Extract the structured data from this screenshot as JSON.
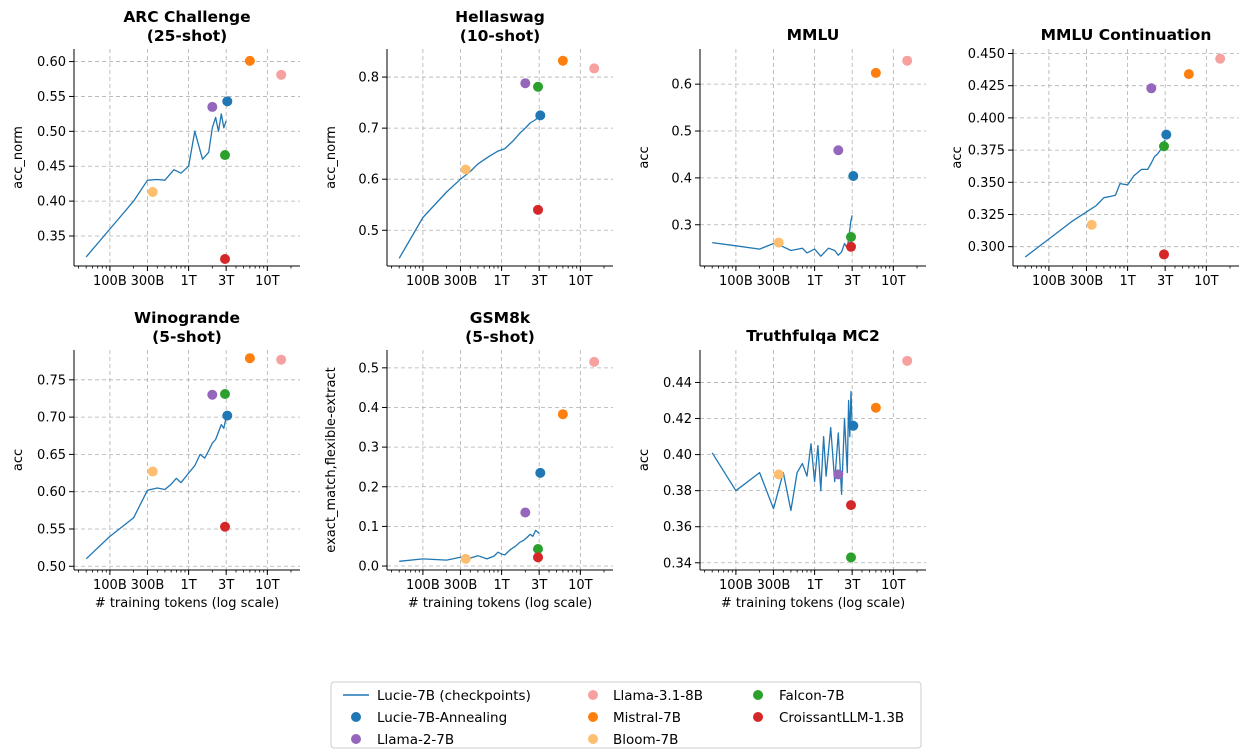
{
  "figure": {
    "xlabel": "# training tokens (log scale)",
    "x_ticks": [
      {
        "v": 100,
        "label": "100B"
      },
      {
        "v": 300,
        "label": "300B"
      },
      {
        "v": 1000,
        "label": "1T"
      },
      {
        "v": 3000,
        "label": "3T"
      },
      {
        "v": 10000,
        "label": "10T"
      }
    ],
    "x_unit": "billions of tokens",
    "xscale": "log",
    "xlim": [
      35,
      26000
    ],
    "grid": true,
    "legend_position": "bottom-center"
  },
  "legend": {
    "items": [
      {
        "label": "Lucie-7B (checkpoints)",
        "kind": "line",
        "color": "#1f77b4"
      },
      {
        "label": "Lucie-7B-Annealing",
        "kind": "dot",
        "color": "#1f77b4"
      },
      {
        "label": "Llama-2-7B",
        "kind": "dot",
        "color": "#9467bd"
      },
      {
        "label": "Llama-3.1-8B",
        "kind": "dot",
        "color": "#f7a0a0"
      },
      {
        "label": "Mistral-7B",
        "kind": "dot",
        "color": "#ff7f0e"
      },
      {
        "label": "Bloom-7B",
        "kind": "dot",
        "color": "#fdbf6f"
      },
      {
        "label": "Falcon-7B",
        "kind": "dot",
        "color": "#2ca02c"
      },
      {
        "label": "CroissantLLM-1.3B",
        "kind": "dot",
        "color": "#d62728"
      }
    ]
  },
  "chart_data": [
    {
      "type": "line",
      "title": "ARC Challenge\n(25-shot)",
      "xlabel": "",
      "ylabel": "acc_norm",
      "ylim": [
        0.307,
        0.618
      ],
      "yticks": [
        0.35,
        0.4,
        0.45,
        0.5,
        0.55,
        0.6
      ],
      "ytick_decimals": 2,
      "line": {
        "x": [
          50,
          100,
          200,
          300,
          400,
          500,
          650,
          800,
          1000,
          1200,
          1500,
          1800,
          2000,
          2200,
          2400,
          2600,
          2800,
          3000
        ],
        "y": [
          0.32,
          0.36,
          0.4,
          0.43,
          0.431,
          0.43,
          0.445,
          0.44,
          0.45,
          0.5,
          0.46,
          0.47,
          0.505,
          0.52,
          0.5,
          0.525,
          0.505,
          0.515
        ]
      },
      "points": {
        "Lucie-7B-Annealing": [
          3100,
          0.543
        ],
        "Llama-2-7B": [
          2000,
          0.535
        ],
        "Llama-3.1-8B": [
          15000,
          0.581
        ],
        "Mistral-7B": [
          6000,
          0.601
        ],
        "Bloom-7B": [
          350,
          0.413
        ],
        "Falcon-7B": [
          2900,
          0.466
        ],
        "CroissantLLM-1.3B": [
          2900,
          0.317
        ]
      }
    },
    {
      "type": "line",
      "title": "Hellaswag\n(10-shot)",
      "xlabel": "",
      "ylabel": "acc_norm",
      "ylim": [
        0.43,
        0.855
      ],
      "yticks": [
        0.5,
        0.6,
        0.7,
        0.8
      ],
      "ytick_decimals": 1,
      "line": {
        "x": [
          50,
          100,
          200,
          300,
          400,
          500,
          700,
          900,
          1100,
          1400,
          1700,
          2000,
          2300,
          2600,
          2900,
          3000
        ],
        "y": [
          0.445,
          0.525,
          0.575,
          0.6,
          0.615,
          0.63,
          0.645,
          0.655,
          0.66,
          0.675,
          0.69,
          0.7,
          0.71,
          0.715,
          0.72,
          0.722
        ]
      },
      "points": {
        "Lucie-7B-Annealing": [
          3100,
          0.725
        ],
        "Llama-2-7B": [
          2000,
          0.788
        ],
        "Llama-3.1-8B": [
          15000,
          0.817
        ],
        "Mistral-7B": [
          6000,
          0.832
        ],
        "Bloom-7B": [
          350,
          0.619
        ],
        "Falcon-7B": [
          2900,
          0.781
        ],
        "CroissantLLM-1.3B": [
          2900,
          0.54
        ]
      }
    },
    {
      "type": "line",
      "title": "MMLU",
      "xlabel": "",
      "ylabel": "acc",
      "ylim": [
        0.212,
        0.675
      ],
      "yticks": [
        0.3,
        0.4,
        0.5,
        0.6
      ],
      "ytick_decimals": 1,
      "line": {
        "x": [
          50,
          100,
          200,
          300,
          400,
          500,
          700,
          800,
          1000,
          1200,
          1500,
          1800,
          2000,
          2200,
          2400,
          2600,
          2800,
          2900,
          3000
        ],
        "y": [
          0.262,
          0.255,
          0.248,
          0.26,
          0.253,
          0.245,
          0.25,
          0.24,
          0.248,
          0.233,
          0.25,
          0.245,
          0.235,
          0.242,
          0.26,
          0.25,
          0.29,
          0.31,
          0.32
        ]
      },
      "points": {
        "Lucie-7B-Annealing": [
          3100,
          0.404
        ],
        "Llama-2-7B": [
          2000,
          0.459
        ],
        "Llama-3.1-8B": [
          15000,
          0.65
        ],
        "Mistral-7B": [
          6000,
          0.624
        ],
        "Bloom-7B": [
          350,
          0.262
        ],
        "Falcon-7B": [
          2900,
          0.274
        ],
        "CroissantLLM-1.3B": [
          2900,
          0.253
        ]
      }
    },
    {
      "type": "line",
      "title": "MMLU Continuation",
      "xlabel": "",
      "ylabel": "acc",
      "ylim": [
        0.285,
        0.4535
      ],
      "yticks": [
        0.3,
        0.325,
        0.35,
        0.375,
        0.4,
        0.425,
        0.45
      ],
      "ytick_decimals": 3,
      "line": {
        "x": [
          50,
          100,
          200,
          300,
          400,
          500,
          600,
          700,
          800,
          1000,
          1200,
          1500,
          1800,
          2000,
          2200,
          2400,
          2600,
          2800,
          3000
        ],
        "y": [
          0.292,
          0.306,
          0.32,
          0.327,
          0.332,
          0.338,
          0.339,
          0.34,
          0.349,
          0.348,
          0.355,
          0.36,
          0.36,
          0.365,
          0.37,
          0.372,
          0.375,
          0.38,
          0.383
        ]
      },
      "points": {
        "Lucie-7B-Annealing": [
          3100,
          0.387
        ],
        "Llama-2-7B": [
          2000,
          0.423
        ],
        "Llama-3.1-8B": [
          15000,
          0.446
        ],
        "Mistral-7B": [
          6000,
          0.434
        ],
        "Bloom-7B": [
          350,
          0.317
        ],
        "Falcon-7B": [
          2900,
          0.378
        ],
        "CroissantLLM-1.3B": [
          2900,
          0.294
        ]
      }
    },
    {
      "type": "line",
      "title": "Winogrande\n(5-shot)",
      "xlabel": "# training tokens (log scale)",
      "ylabel": "acc",
      "ylim": [
        0.495,
        0.79
      ],
      "yticks": [
        0.5,
        0.55,
        0.6,
        0.65,
        0.7,
        0.75
      ],
      "ytick_decimals": 2,
      "line": {
        "x": [
          50,
          100,
          200,
          300,
          400,
          500,
          600,
          700,
          800,
          1000,
          1200,
          1400,
          1600,
          1800,
          2000,
          2200,
          2400,
          2600,
          2800,
          3000
        ],
        "y": [
          0.51,
          0.54,
          0.565,
          0.602,
          0.605,
          0.603,
          0.61,
          0.618,
          0.612,
          0.625,
          0.635,
          0.65,
          0.645,
          0.655,
          0.665,
          0.67,
          0.68,
          0.69,
          0.685,
          0.7
        ]
      },
      "points": {
        "Lucie-7B-Annealing": [
          3100,
          0.702
        ],
        "Llama-2-7B": [
          2000,
          0.73
        ],
        "Llama-3.1-8B": [
          15000,
          0.777
        ],
        "Mistral-7B": [
          6000,
          0.779
        ],
        "Bloom-7B": [
          350,
          0.627
        ],
        "Falcon-7B": [
          2900,
          0.731
        ],
        "CroissantLLM-1.3B": [
          2900,
          0.553
        ]
      }
    },
    {
      "type": "line",
      "title": "GSM8k\n(5-shot)",
      "xlabel": "# training tokens (log scale)",
      "ylabel": "exact_match,flexible-extract",
      "ylim": [
        -0.01,
        0.545
      ],
      "yticks": [
        0.0,
        0.1,
        0.2,
        0.3,
        0.4,
        0.5
      ],
      "ytick_decimals": 1,
      "line": {
        "x": [
          50,
          100,
          200,
          300,
          400,
          500,
          650,
          800,
          900,
          1000,
          1100,
          1300,
          1500,
          1700,
          1900,
          2100,
          2300,
          2500,
          2700,
          2900,
          3000
        ],
        "y": [
          0.012,
          0.018,
          0.015,
          0.022,
          0.02,
          0.026,
          0.018,
          0.025,
          0.035,
          0.03,
          0.028,
          0.042,
          0.05,
          0.06,
          0.065,
          0.072,
          0.08,
          0.075,
          0.09,
          0.085,
          0.082
        ]
      },
      "points": {
        "Lucie-7B-Annealing": [
          3100,
          0.235
        ],
        "Llama-2-7B": [
          2000,
          0.135
        ],
        "Llama-3.1-8B": [
          15000,
          0.515
        ],
        "Mistral-7B": [
          6000,
          0.383
        ],
        "Bloom-7B": [
          350,
          0.018
        ],
        "Falcon-7B": [
          2900,
          0.043
        ],
        "CroissantLLM-1.3B": [
          2900,
          0.022
        ]
      }
    },
    {
      "type": "line",
      "title": "Truthfulqa MC2",
      "xlabel": "# training tokens (log scale)",
      "ylabel": "acc",
      "ylim": [
        0.336,
        0.458
      ],
      "yticks": [
        0.34,
        0.36,
        0.38,
        0.4,
        0.42,
        0.44
      ],
      "ytick_decimals": 2,
      "line": {
        "x": [
          50,
          100,
          200,
          300,
          400,
          500,
          600,
          700,
          800,
          900,
          1000,
          1100,
          1200,
          1300,
          1400,
          1600,
          1800,
          2000,
          2200,
          2400,
          2600,
          2700,
          2800,
          2900,
          3000
        ],
        "y": [
          0.401,
          0.38,
          0.39,
          0.37,
          0.39,
          0.369,
          0.39,
          0.395,
          0.388,
          0.406,
          0.385,
          0.405,
          0.38,
          0.41,
          0.388,
          0.415,
          0.385,
          0.412,
          0.378,
          0.42,
          0.39,
          0.43,
          0.41,
          0.435,
          0.415
        ]
      },
      "points": {
        "Lucie-7B-Annealing": [
          3100,
          0.416
        ],
        "Llama-2-7B": [
          2000,
          0.389
        ],
        "Llama-3.1-8B": [
          15000,
          0.452
        ],
        "Mistral-7B": [
          6000,
          0.426
        ],
        "Bloom-7B": [
          350,
          0.389
        ],
        "Falcon-7B": [
          2900,
          0.343
        ],
        "CroissantLLM-1.3B": [
          2900,
          0.372
        ]
      }
    }
  ]
}
